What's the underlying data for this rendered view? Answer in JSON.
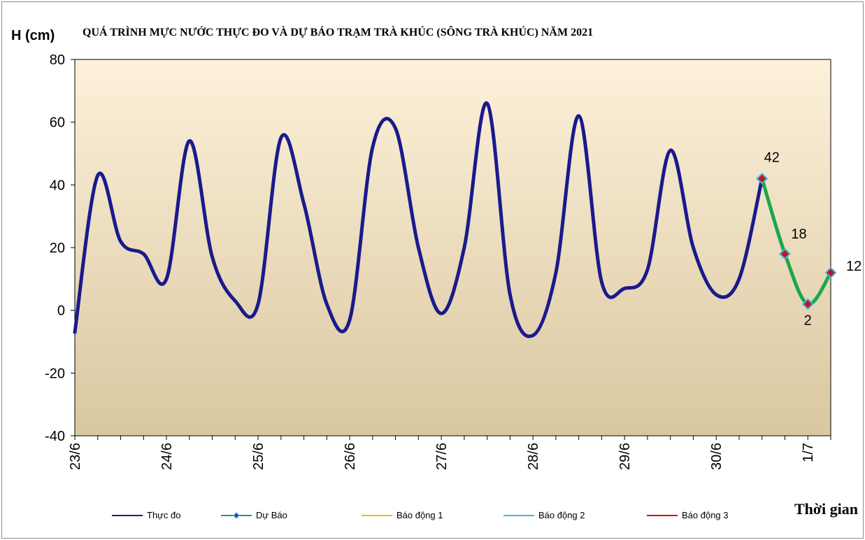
{
  "chart_data": {
    "type": "line",
    "title": "QUÁ TRÌNH MỰC NƯỚC THỰC ĐO VÀ DỰ BÁO TRẠM TRÀ KHÚC (SÔNG TRÀ KHÚC) NĂM 2021",
    "ylabel": "H (cm)",
    "xlabel": "Thời gian",
    "ylim": [
      -40,
      80
    ],
    "yticks": [
      "80",
      "60",
      "40",
      "20",
      "0",
      "-20",
      "-40"
    ],
    "xticks": [
      "23/6",
      "24/6",
      "25/6",
      "26/6",
      "27/6",
      "28/6",
      "29/6",
      "30/6",
      "1/7"
    ],
    "x_range_days": [
      0,
      8.25
    ],
    "grid": false,
    "legend_position": "bottom",
    "colors": {
      "observed": "#1a1a8c",
      "forecast": "#1aa84a",
      "alarm1": "#f5b800",
      "alarm2": "#3fb4e8",
      "alarm3": "#d01010",
      "marker_fill": "#c01818",
      "marker_edge": "#3fb4e8",
      "plot_top": "#fdf1da",
      "plot_bottom": "#d9c7a0"
    },
    "series": [
      {
        "name": "Thực đo",
        "key": "observed",
        "x_days": [
          0,
          0.25,
          0.5,
          0.75,
          1,
          1.25,
          1.5,
          1.75,
          2,
          2.25,
          2.5,
          2.75,
          3,
          3.25,
          3.5,
          3.75,
          4,
          4.25,
          4.5,
          4.75,
          5,
          5.25,
          5.5,
          5.75,
          6,
          6.25,
          6.5,
          6.75,
          7,
          7.25,
          7.5
        ],
        "values": [
          -7,
          43,
          22,
          18,
          10,
          54,
          17,
          3,
          2,
          55,
          34,
          2,
          -3,
          52,
          58,
          20,
          -1,
          20,
          66,
          5,
          -8,
          12,
          62,
          9,
          7,
          13,
          51,
          20,
          5,
          10,
          42
        ]
      },
      {
        "name": "Dự Báo",
        "key": "forecast",
        "x_days": [
          7.5,
          7.75,
          8,
          8.25
        ],
        "values": [
          42,
          18,
          2,
          12
        ],
        "data_labels": [
          "42",
          "18",
          "2",
          "12"
        ]
      },
      {
        "name": "Báo động  1",
        "key": "alarm1",
        "values": []
      },
      {
        "name": "Báo động  2",
        "key": "alarm2",
        "values": []
      },
      {
        "name": "Báo động  3",
        "key": "alarm3",
        "values": []
      }
    ]
  }
}
